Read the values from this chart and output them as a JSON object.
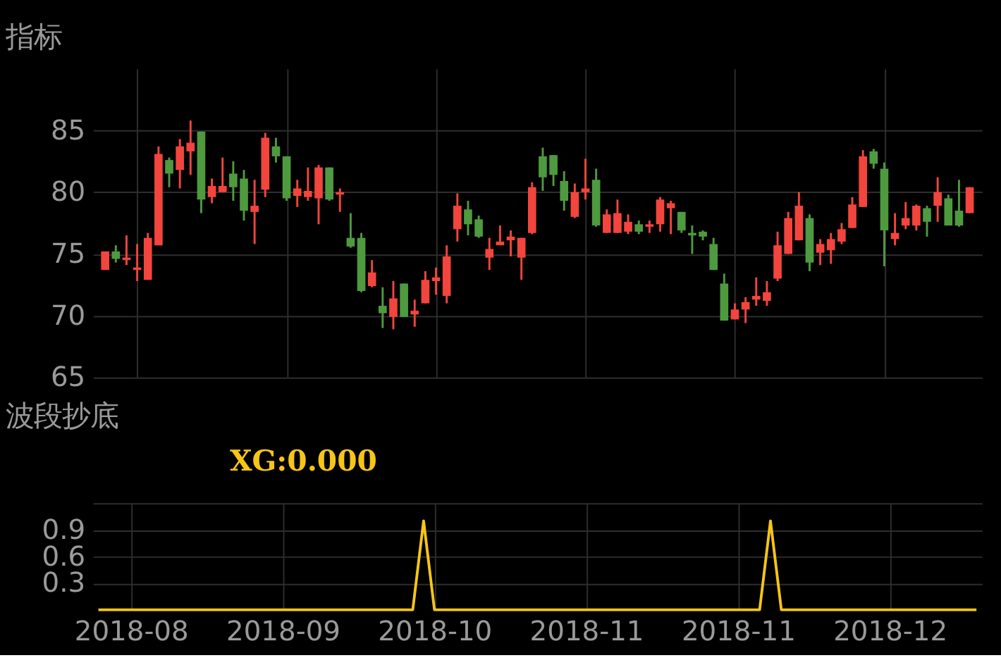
{
  "chart_data": [
    {
      "type": "candlestick",
      "title": "指标",
      "categories": [
        null,
        null,
        null,
        null,
        null,
        null,
        null,
        null,
        null,
        null,
        null,
        null,
        null,
        null,
        null,
        null,
        null,
        null,
        null,
        null,
        null,
        null,
        null,
        null,
        null,
        null,
        null,
        null,
        null,
        null,
        null,
        null,
        null,
        null,
        null,
        null,
        null,
        null,
        null,
        null,
        null,
        null,
        null,
        null,
        null,
        null,
        null,
        null,
        null,
        null,
        null,
        null,
        null,
        null,
        null,
        null,
        null,
        null,
        null,
        null,
        null,
        null,
        null,
        null,
        null,
        null,
        null,
        null,
        null,
        null,
        null,
        null,
        null,
        null,
        null,
        null,
        null,
        null,
        null,
        null,
        null,
        null
      ],
      "ohlc": [
        [
          73.7,
          75.2,
          73.7,
          75.2
        ],
        [
          75.2,
          75.7,
          74.3,
          74.6
        ],
        [
          74.5,
          76.5,
          74.1,
          74.7
        ],
        [
          73.7,
          75.8,
          72.8,
          73.9
        ],
        [
          72.9,
          76.7,
          72.9,
          76.3
        ],
        [
          75.7,
          83.7,
          75.7,
          83.1
        ],
        [
          82.6,
          82.8,
          80.4,
          81.5
        ],
        [
          81.8,
          84.3,
          80.3,
          83.7
        ],
        [
          83.3,
          85.8,
          81.4,
          84.0
        ],
        [
          84.9,
          84.9,
          78.3,
          79.4
        ],
        [
          79.6,
          81.1,
          79.1,
          80.5
        ],
        [
          80.0,
          82.8,
          80.0,
          80.5
        ],
        [
          81.5,
          82.5,
          79.3,
          80.4
        ],
        [
          81.1,
          81.8,
          77.7,
          78.5
        ],
        [
          78.4,
          81.0,
          75.8,
          78.9
        ],
        [
          80.2,
          84.8,
          79.6,
          84.4
        ],
        [
          83.7,
          84.4,
          82.4,
          82.9
        ],
        [
          82.9,
          82.9,
          79.3,
          79.5
        ],
        [
          79.7,
          81.0,
          78.8,
          80.3
        ],
        [
          79.6,
          82.0,
          79.3,
          80.1
        ],
        [
          79.5,
          82.2,
          77.4,
          82.0
        ],
        [
          82.0,
          82.0,
          79.3,
          79.4
        ],
        [
          79.8,
          80.3,
          78.4,
          80.0
        ],
        [
          76.3,
          78.3,
          75.5,
          75.6
        ],
        [
          76.3,
          76.7,
          71.9,
          72.0
        ],
        [
          72.4,
          74.5,
          72.3,
          73.5
        ],
        [
          70.8,
          72.3,
          69.0,
          70.2
        ],
        [
          69.9,
          72.8,
          68.9,
          71.4
        ],
        [
          72.6,
          72.6,
          69.9,
          69.9
        ],
        [
          70.1,
          71.3,
          69.1,
          70.4
        ],
        [
          71.0,
          73.6,
          71.0,
          72.9
        ],
        [
          72.8,
          73.9,
          71.7,
          73.1
        ],
        [
          71.6,
          75.7,
          71.0,
          74.8
        ],
        [
          77.0,
          79.9,
          76.0,
          78.9
        ],
        [
          78.6,
          79.3,
          76.5,
          77.4
        ],
        [
          77.8,
          78.1,
          76.3,
          76.4
        ],
        [
          74.7,
          76.3,
          73.7,
          75.4
        ],
        [
          75.7,
          77.3,
          75.7,
          76.0
        ],
        [
          76.1,
          76.9,
          74.8,
          76.4
        ],
        [
          74.7,
          76.3,
          72.9,
          76.3
        ],
        [
          76.7,
          80.8,
          76.6,
          80.4
        ],
        [
          82.9,
          83.6,
          80.1,
          81.2
        ],
        [
          83.0,
          83.0,
          80.5,
          81.4
        ],
        [
          80.9,
          81.7,
          78.5,
          79.3
        ],
        [
          78.0,
          80.7,
          77.9,
          80.0
        ],
        [
          80.0,
          82.7,
          79.4,
          80.3
        ],
        [
          81.0,
          81.9,
          77.2,
          77.3
        ],
        [
          76.7,
          78.6,
          76.7,
          78.2
        ],
        [
          76.7,
          79.4,
          76.7,
          78.3
        ],
        [
          76.8,
          78.2,
          76.6,
          77.6
        ],
        [
          77.4,
          77.7,
          76.6,
          76.8
        ],
        [
          77.2,
          77.7,
          76.7,
          77.4
        ],
        [
          77.4,
          79.6,
          76.8,
          79.4
        ],
        [
          78.7,
          79.3,
          76.6,
          79.1
        ],
        [
          78.4,
          78.4,
          76.7,
          76.9
        ],
        [
          76.7,
          77.3,
          75.0,
          76.5
        ],
        [
          76.8,
          76.9,
          76.1,
          76.4
        ],
        [
          75.8,
          76.3,
          73.7,
          73.7
        ],
        [
          72.6,
          73.4,
          69.6,
          69.6
        ],
        [
          69.7,
          71.0,
          69.7,
          70.5
        ],
        [
          70.5,
          71.5,
          69.4,
          71.1
        ],
        [
          71.3,
          73.1,
          70.8,
          71.6
        ],
        [
          71.2,
          72.8,
          70.8,
          71.9
        ],
        [
          73.0,
          76.8,
          72.8,
          75.7
        ],
        [
          75.0,
          78.4,
          75.0,
          77.9
        ],
        [
          76.1,
          80.0,
          76.1,
          78.9
        ],
        [
          77.9,
          78.2,
          73.6,
          74.3
        ],
        [
          75.1,
          76.2,
          74.1,
          75.8
        ],
        [
          75.3,
          76.7,
          74.2,
          76.2
        ],
        [
          76.0,
          77.5,
          75.8,
          77.0
        ],
        [
          77.1,
          79.6,
          77.1,
          79.0
        ],
        [
          78.8,
          83.4,
          78.8,
          82.9
        ],
        [
          83.3,
          83.5,
          81.9,
          82.3
        ],
        [
          81.9,
          82.4,
          74.0,
          76.9
        ],
        [
          76.2,
          78.3,
          75.7,
          76.7
        ],
        [
          77.3,
          79.2,
          77.0,
          77.9
        ],
        [
          77.3,
          79.0,
          76.9,
          78.9
        ],
        [
          78.7,
          78.9,
          76.4,
          77.6
        ],
        [
          78.9,
          81.2,
          77.6,
          80.0
        ],
        [
          79.5,
          79.8,
          77.3,
          77.3
        ],
        [
          78.5,
          81.0,
          77.2,
          77.3
        ],
        [
          78.3,
          80.4,
          78.3,
          80.4
        ]
      ],
      "colors": [
        "#f2453d",
        "#4e9a3f",
        "#f2453d",
        "#f2453d",
        "#f2453d",
        "#f2453d",
        "#4e9a3f",
        "#f2453d",
        "#f2453d",
        "#4e9a3f",
        "#f2453d",
        "#f2453d",
        "#4e9a3f",
        "#4e9a3f",
        "#f2453d",
        "#f2453d",
        "#4e9a3f",
        "#4e9a3f",
        "#f2453d",
        "#f2453d",
        "#f2453d",
        "#4e9a3f",
        "#f2453d",
        "#4e9a3f",
        "#4e9a3f",
        "#f2453d",
        "#4e9a3f",
        "#f2453d",
        "#4e9a3f",
        "#f2453d",
        "#f2453d",
        "#f2453d",
        "#f2453d",
        "#f2453d",
        "#4e9a3f",
        "#4e9a3f",
        "#f2453d",
        "#f2453d",
        "#f2453d",
        "#f2453d",
        "#f2453d",
        "#4e9a3f",
        "#4e9a3f",
        "#4e9a3f",
        "#f2453d",
        "#f2453d",
        "#4e9a3f",
        "#f2453d",
        "#f2453d",
        "#f2453d",
        "#4e9a3f",
        "#f2453d",
        "#f2453d",
        "#f2453d",
        "#4e9a3f",
        "#4e9a3f",
        "#4e9a3f",
        "#4e9a3f",
        "#4e9a3f",
        "#f2453d",
        "#f2453d",
        "#f2453d",
        "#f2453d",
        "#f2453d",
        "#f2453d",
        "#f2453d",
        "#4e9a3f",
        "#f2453d",
        "#f2453d",
        "#f2453d",
        "#f2453d",
        "#f2453d",
        "#4e9a3f",
        "#4e9a3f",
        "#f2453d",
        "#f2453d",
        "#f2453d",
        "#4e9a3f",
        "#f2453d",
        "#4e9a3f",
        "#4e9a3f",
        "#f2453d"
      ],
      "ylim": [
        65,
        90
      ],
      "yticks": [
        65,
        70,
        75,
        80,
        85
      ],
      "grid": true,
      "tick_labels": "y"
    },
    {
      "type": "line",
      "title": "波段抄底",
      "annotations": [
        "XG:0.000"
      ],
      "categories": [
        null,
        null,
        null,
        "2018-08",
        null,
        null,
        null,
        null,
        null,
        null,
        null,
        null,
        null,
        null,
        null,
        null,
        null,
        "2018-09",
        null,
        null,
        null,
        null,
        null,
        null,
        null,
        null,
        null,
        null,
        null,
        null,
        null,
        "2018-10",
        null,
        null,
        null,
        null,
        null,
        null,
        null,
        null,
        null,
        null,
        null,
        null,
        null,
        "2018-11",
        null,
        null,
        null,
        null,
        null,
        null,
        null,
        null,
        null,
        null,
        null,
        null,
        null,
        "2018-11",
        null,
        null,
        null,
        null,
        null,
        null,
        null,
        null,
        null,
        null,
        null,
        null,
        null,
        "2018-12",
        null,
        null,
        null,
        null,
        null,
        null,
        null,
        null
      ],
      "series": [
        {
          "color": "#f5c518",
          "values": [
            0,
            0,
            0,
            0,
            0,
            0,
            0,
            0,
            0,
            0,
            0,
            0,
            0,
            0,
            0,
            0,
            0,
            0,
            0,
            0,
            0,
            0,
            0,
            0,
            0,
            0,
            0,
            0,
            0,
            0,
            1,
            0,
            0,
            0,
            0,
            0,
            0,
            0,
            0,
            0,
            0,
            0,
            0,
            0,
            0,
            0,
            0,
            0,
            0,
            0,
            0,
            0,
            0,
            0,
            0,
            0,
            0,
            0,
            0,
            0,
            0,
            0,
            1,
            0,
            0,
            0,
            0,
            0,
            0,
            0,
            0,
            0,
            0,
            0,
            0,
            0,
            0,
            0,
            0,
            0,
            0,
            0
          ]
        }
      ],
      "ylim": [
        0,
        1.2
      ],
      "yticks": [
        0.3,
        0.6,
        0.9,
        {
          "value": 1.2,
          "label": null
        }
      ],
      "grid": true,
      "marker": "none"
    }
  ]
}
